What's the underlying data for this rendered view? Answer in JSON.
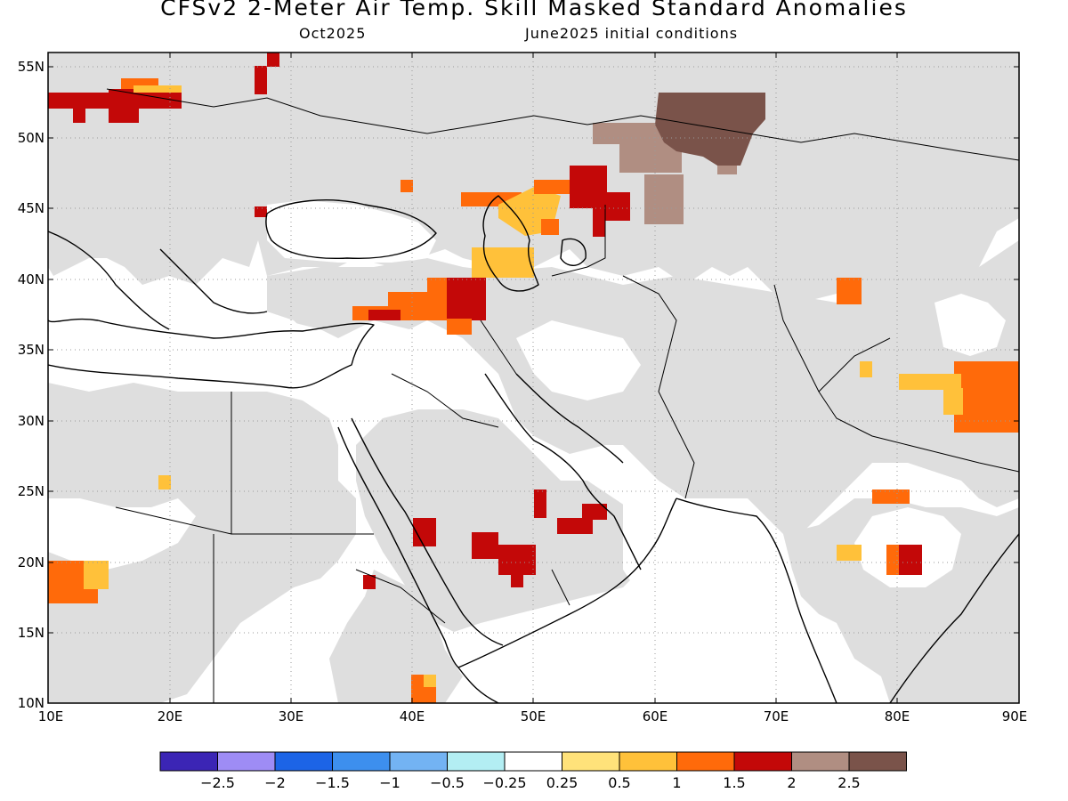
{
  "title": "CFSv2 2-Meter Air Temp. Skill Masked Standard Anomalies",
  "subtitle_left": "Oct2025",
  "subtitle_right": "June2025 initial conditions",
  "axes": {
    "lat_ticks": [
      "55N",
      "50N",
      "45N",
      "40N",
      "35N",
      "30N",
      "25N",
      "20N",
      "15N",
      "10N"
    ],
    "lon_ticks": [
      "10E",
      "20E",
      "30E",
      "40E",
      "50E",
      "60E",
      "70E",
      "80E",
      "90E"
    ]
  },
  "colorbar": {
    "colors": [
      "#3b25b5",
      "#9e8cf5",
      "#1c64e6",
      "#3d8fee",
      "#73b3f3",
      "#b3eef3",
      "#ffffff",
      "#ffe27a",
      "#ffc13a",
      "#ff6a0a",
      "#c30808",
      "#b08e82",
      "#7a534a"
    ],
    "labels": [
      "-2.5",
      "-2",
      "-1.5",
      "-1",
      "-0.5",
      "-0.25",
      "0.25",
      "0.5",
      "1",
      "1.5",
      "2",
      "2.5"
    ]
  },
  "legend": {
    "no_skill_color": "#dedede"
  }
}
